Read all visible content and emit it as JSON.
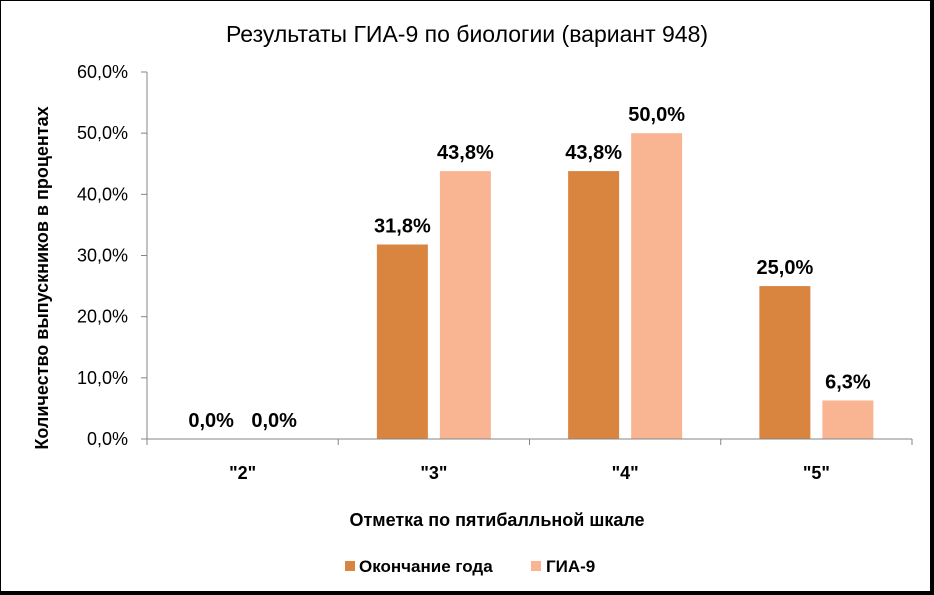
{
  "chart_data": {
    "type": "bar",
    "title": "Результаты ГИА-9 по биологии (вариант 948)",
    "xlabel": "Отметка по пятибалльной шкале",
    "ylabel": "Количество выпускников в процентах",
    "categories": [
      "\"2\"",
      "\"3\"",
      "\"4\"",
      "\"5\""
    ],
    "series": [
      {
        "name": "Окончание года",
        "color": "#D9853F",
        "values": [
          0.0,
          31.8,
          43.8,
          25.0
        ],
        "data_labels": [
          "0,0%",
          "31,8%",
          "43,8%",
          "25,0%"
        ]
      },
      {
        "name": "ГИА-9",
        "color": "#F9B592",
        "values": [
          0.0,
          43.8,
          50.0,
          6.3
        ],
        "data_labels": [
          "0,0%",
          "43,8%",
          "50,0%",
          "6,3%"
        ]
      }
    ],
    "ylim": [
      0,
      60
    ],
    "yticks": [
      0,
      10,
      20,
      30,
      40,
      50,
      60
    ],
    "ytick_labels": [
      "0,0%",
      "10,0%",
      "20,0%",
      "30,0%",
      "40,0%",
      "50,0%",
      "60,0%"
    ],
    "grid": false,
    "legend": "bottom",
    "axis_color": "#868686"
  }
}
